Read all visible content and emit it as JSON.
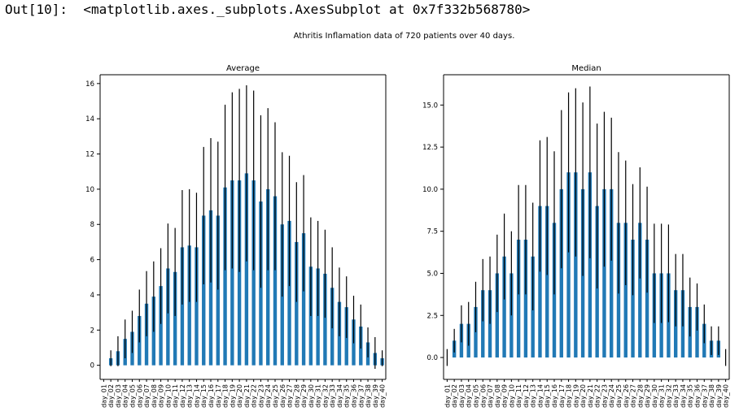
{
  "output": {
    "prompt": "Out[10]:",
    "repr": "<matplotlib.axes._subplots.AxesSubplot at 0x7f332b568780>"
  },
  "suptitle": "Athritis Inflamation data of 720 patients over 40 days.",
  "colors": {
    "bar": "#2179b5",
    "error": "#000000",
    "axis": "#000000"
  },
  "chart_data": [
    {
      "type": "bar",
      "title": "Average",
      "xlabel": "",
      "ylabel": "",
      "ylim": [
        -0.8,
        16.5
      ],
      "yticks": [
        0,
        2,
        4,
        6,
        8,
        10,
        12,
        14,
        16
      ],
      "ytick_labels": [
        "0",
        "2",
        "4",
        "6",
        "8",
        "10",
        "12",
        "14",
        "16"
      ],
      "grid": false,
      "categories": [
        "day_01",
        "day_02",
        "day_03",
        "day_04",
        "day_05",
        "day_06",
        "day_07",
        "day_08",
        "day_09",
        "day_10",
        "day_11",
        "day_12",
        "day_13",
        "day_14",
        "day_15",
        "day_16",
        "day_17",
        "day_18",
        "day_19",
        "day_20",
        "day_21",
        "day_22",
        "day_23",
        "day_24",
        "day_25",
        "day_26",
        "day_27",
        "day_28",
        "day_29",
        "day_30",
        "day_31",
        "day_32",
        "day_33",
        "day_34",
        "day_35",
        "day_36",
        "day_37",
        "day_38",
        "day_39",
        "day_40"
      ],
      "values": [
        0.0,
        0.4,
        0.8,
        1.5,
        1.9,
        2.8,
        3.5,
        3.9,
        4.5,
        5.5,
        5.3,
        6.7,
        6.8,
        6.7,
        8.5,
        8.8,
        8.5,
        10.1,
        10.5,
        10.5,
        10.9,
        10.5,
        9.3,
        10.0,
        9.6,
        8.0,
        8.2,
        7.0,
        7.5,
        5.6,
        5.5,
        5.2,
        4.4,
        3.6,
        3.3,
        2.6,
        2.2,
        1.3,
        0.7,
        0.4
      ],
      "errors": [
        0.0,
        0.45,
        0.85,
        1.1,
        1.2,
        1.5,
        1.85,
        2.0,
        2.15,
        2.55,
        2.5,
        3.25,
        3.2,
        3.1,
        3.9,
        4.1,
        4.2,
        4.7,
        5.0,
        5.2,
        5.0,
        5.1,
        4.9,
        4.6,
        4.2,
        4.1,
        3.7,
        3.4,
        3.3,
        2.8,
        2.7,
        2.5,
        2.3,
        1.95,
        1.75,
        1.35,
        1.25,
        0.85,
        0.9,
        0.45
      ]
    },
    {
      "type": "bar",
      "title": "Median",
      "xlabel": "",
      "ylabel": "",
      "ylim": [
        -1.3,
        16.8
      ],
      "yticks": [
        0,
        2.5,
        5,
        7.5,
        10,
        12.5,
        15
      ],
      "ytick_labels": [
        "0.0",
        "2.5",
        "5.0",
        "7.5",
        "10.0",
        "12.5",
        "15.0"
      ],
      "grid": false,
      "categories": [
        "day_01",
        "day_02",
        "day_03",
        "day_04",
        "day_05",
        "day_06",
        "day_07",
        "day_08",
        "day_09",
        "day_10",
        "day_11",
        "day_12",
        "day_13",
        "day_14",
        "day_15",
        "day_16",
        "day_17",
        "day_18",
        "day_19",
        "day_20",
        "day_21",
        "day_22",
        "day_23",
        "day_24",
        "day_25",
        "day_26",
        "day_27",
        "day_28",
        "day_29",
        "day_30",
        "day_31",
        "day_32",
        "day_33",
        "day_34",
        "day_35",
        "day_36",
        "day_37",
        "day_38",
        "day_39",
        "day_40"
      ],
      "values": [
        0,
        1,
        2,
        2,
        3,
        4,
        4,
        5,
        6,
        5,
        7,
        7,
        6,
        9,
        9,
        8,
        10,
        11,
        11,
        10,
        11,
        9,
        10,
        10,
        8,
        8,
        7,
        8,
        7,
        5,
        5,
        5,
        4,
        4,
        3,
        3,
        2,
        1,
        1,
        0
      ],
      "errors": [
        0.5,
        0.7,
        1.1,
        1.3,
        1.5,
        1.85,
        2.0,
        2.3,
        2.55,
        2.5,
        3.25,
        3.25,
        3.2,
        3.9,
        4.1,
        4.25,
        4.7,
        4.75,
        5.0,
        5.15,
        5.1,
        4.9,
        4.6,
        4.25,
        4.2,
        3.7,
        3.3,
        3.3,
        3.15,
        2.95,
        2.95,
        2.9,
        2.15,
        2.15,
        1.75,
        1.4,
        1.15,
        0.85,
        0.85,
        0.5
      ]
    }
  ]
}
